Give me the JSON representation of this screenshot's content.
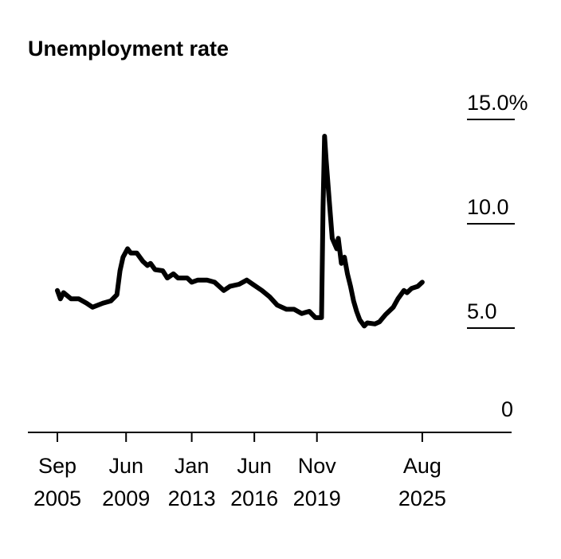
{
  "chart_data": {
    "type": "line",
    "title": "Unemployment rate",
    "xlabel": "",
    "ylabel": "",
    "ylim": [
      0,
      15
    ],
    "grid": false,
    "y_ticks": [
      {
        "value": 0,
        "label": "0"
      },
      {
        "value": 5,
        "label": "5.0"
      },
      {
        "value": 10,
        "label": "10.0"
      },
      {
        "value": 15,
        "label": "15.0%"
      }
    ],
    "x_ticks": [
      {
        "date": "2005-09",
        "line1": "Sep",
        "line2": "2005"
      },
      {
        "date": "2009-06",
        "line1": "Jun",
        "line2": "2009"
      },
      {
        "date": "2013-01",
        "line1": "Jan",
        "line2": "2013"
      },
      {
        "date": "2016-06",
        "line1": "Jun",
        "line2": "2016"
      },
      {
        "date": "2019-11",
        "line1": "Nov",
        "line2": "2019"
      },
      {
        "date": "2025-08",
        "line1": "Aug",
        "line2": "2025"
      }
    ],
    "series": [
      {
        "color": "#000000",
        "points": [
          [
            "2005-09",
            6.8
          ],
          [
            "2005-11",
            6.4
          ],
          [
            "2006-01",
            6.7
          ],
          [
            "2006-06",
            6.4
          ],
          [
            "2006-11",
            6.4
          ],
          [
            "2007-04",
            6.2
          ],
          [
            "2007-08",
            6.0
          ],
          [
            "2008-03",
            6.2
          ],
          [
            "2008-08",
            6.3
          ],
          [
            "2008-12",
            6.6
          ],
          [
            "2009-02",
            7.75
          ],
          [
            "2009-04",
            8.4
          ],
          [
            "2009-07",
            8.8
          ],
          [
            "2009-09",
            8.6
          ],
          [
            "2010-01",
            8.6
          ],
          [
            "2010-05",
            8.2
          ],
          [
            "2010-08",
            8.0
          ],
          [
            "2010-10",
            8.1
          ],
          [
            "2011-01",
            7.8
          ],
          [
            "2011-06",
            7.75
          ],
          [
            "2011-09",
            7.4
          ],
          [
            "2012-01",
            7.6
          ],
          [
            "2012-04",
            7.4
          ],
          [
            "2012-10",
            7.4
          ],
          [
            "2013-01",
            7.2
          ],
          [
            "2013-05",
            7.3
          ],
          [
            "2013-11",
            7.3
          ],
          [
            "2014-04",
            7.2
          ],
          [
            "2014-10",
            6.8
          ],
          [
            "2015-02",
            7.0
          ],
          [
            "2015-08",
            7.1
          ],
          [
            "2016-01",
            7.3
          ],
          [
            "2016-05",
            7.1
          ],
          [
            "2016-11",
            6.8
          ],
          [
            "2017-04",
            6.5
          ],
          [
            "2017-09",
            6.1
          ],
          [
            "2018-03",
            5.9
          ],
          [
            "2018-08",
            5.9
          ],
          [
            "2019-01",
            5.7
          ],
          [
            "2019-06",
            5.8
          ],
          [
            "2019-10",
            5.5
          ],
          [
            "2020-02",
            5.5
          ],
          [
            "2020-03",
            10.8
          ],
          [
            "2020-04",
            14.2
          ],
          [
            "2020-05",
            13.1
          ],
          [
            "2020-07",
            11.2
          ],
          [
            "2020-09",
            9.3
          ],
          [
            "2020-12",
            8.8
          ],
          [
            "2021-01",
            9.3
          ],
          [
            "2021-03",
            8.1
          ],
          [
            "2021-05",
            8.4
          ],
          [
            "2021-07",
            7.6
          ],
          [
            "2021-09",
            7.0
          ],
          [
            "2021-11",
            6.3
          ],
          [
            "2022-01",
            5.8
          ],
          [
            "2022-03",
            5.4
          ],
          [
            "2022-06",
            5.1
          ],
          [
            "2022-08",
            5.25
          ],
          [
            "2023-01",
            5.2
          ],
          [
            "2023-04",
            5.3
          ],
          [
            "2023-08",
            5.65
          ],
          [
            "2024-01",
            6.0
          ],
          [
            "2024-04",
            6.4
          ],
          [
            "2024-08",
            6.8
          ],
          [
            "2024-10",
            6.7
          ],
          [
            "2025-01",
            6.9
          ],
          [
            "2025-05",
            7.0
          ],
          [
            "2025-08",
            7.2
          ]
        ]
      }
    ]
  }
}
